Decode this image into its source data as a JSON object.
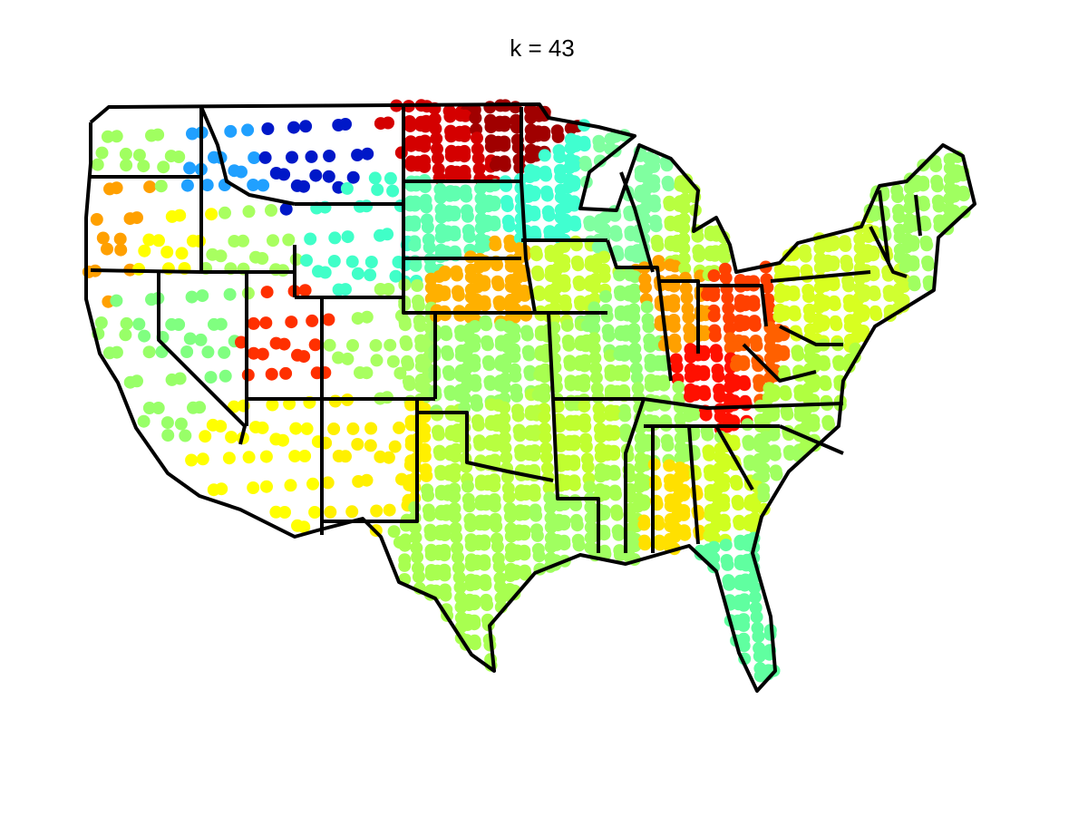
{
  "title": "k = 43"
}
